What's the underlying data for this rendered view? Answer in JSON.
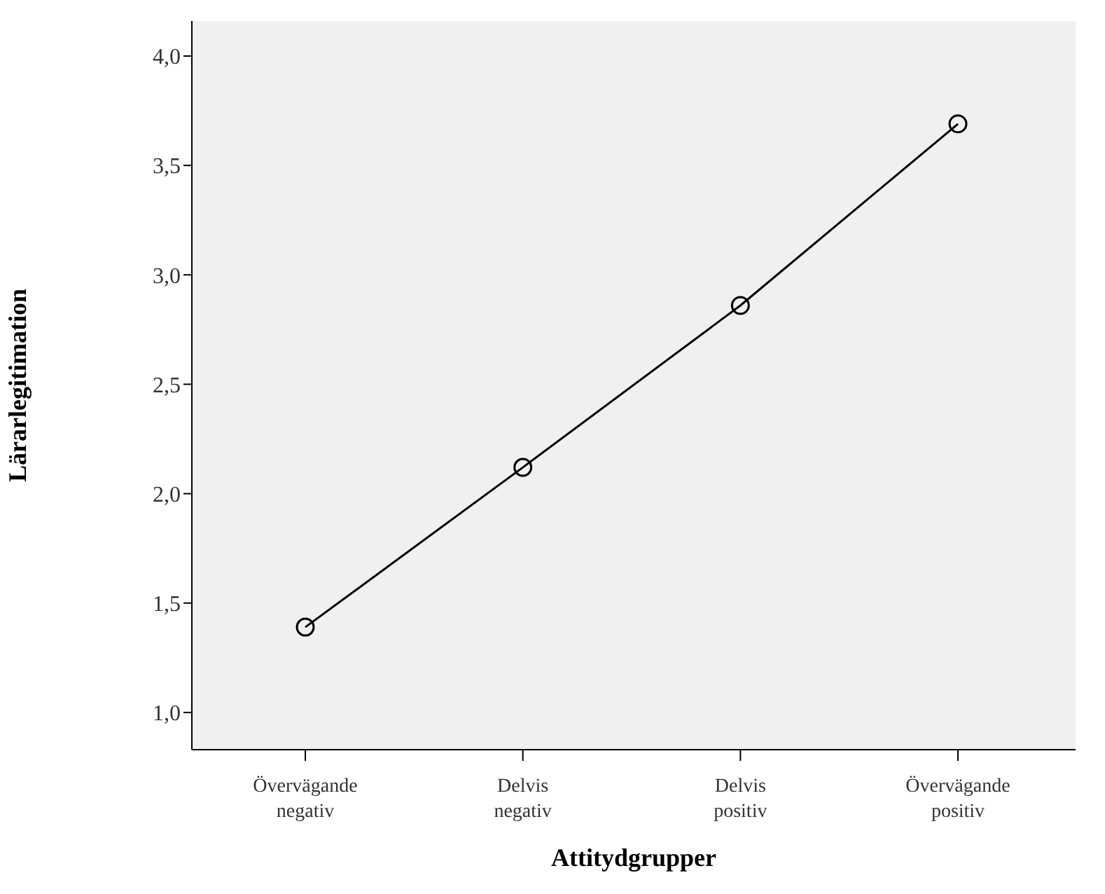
{
  "chart_data": {
    "type": "line",
    "xlabel": "Attitydgrupper",
    "ylabel": "Lärarlegitimation",
    "categories": [
      "Övervägande negativ",
      "Delvis negativ",
      "Delvis positiv",
      "Övervägande positiv"
    ],
    "series": [
      {
        "color": "#000000",
        "values": [
          1.39,
          2.12,
          2.86,
          3.69
        ]
      }
    ],
    "ylim": [
      0.83,
      4.16
    ],
    "yticks": [
      {
        "value": 1,
        "label": "1,0"
      },
      {
        "value": 1.5,
        "label": "1,5"
      },
      {
        "value": 2,
        "label": "2,0"
      },
      {
        "value": 2.5,
        "label": "2,5"
      },
      {
        "value": 3,
        "label": "3,0"
      },
      {
        "value": 3.5,
        "label": "3,5"
      },
      {
        "value": 4,
        "label": "4,0"
      }
    ],
    "marker": "circle",
    "line_style": "solid",
    "grid": false
  }
}
